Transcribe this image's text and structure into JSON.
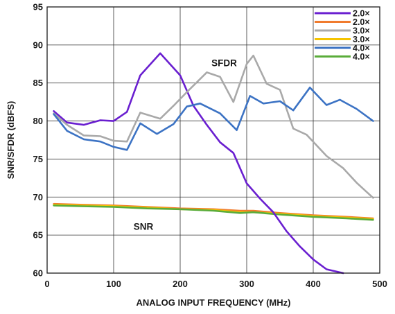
{
  "chart_data": {
    "type": "line",
    "xlabel": "ANALOG INPUT FREQUENCY (MHz)",
    "ylabel": "SNR/SFDR (dBFS)",
    "xlim": [
      0,
      500
    ],
    "ylim": [
      60,
      95
    ],
    "xticks": [
      0,
      100,
      200,
      300,
      400,
      500
    ],
    "yticks": [
      60,
      65,
      70,
      75,
      80,
      85,
      90,
      95
    ],
    "grid": true,
    "legend_position": "top-right",
    "annotations": [
      {
        "text": "SFDR",
        "x": 247,
        "y": 87.2
      },
      {
        "text": "SNR",
        "x": 130,
        "y": 65.7
      }
    ],
    "series": [
      {
        "name": "2.0×",
        "metric": "SFDR",
        "color": "#6a1fd0",
        "x": [
          10,
          30,
          55,
          80,
          100,
          120,
          140,
          170,
          200,
          220,
          240,
          260,
          280,
          300,
          320,
          340,
          360,
          380,
          400,
          420,
          445
        ],
        "y": [
          81.3,
          79.8,
          79.5,
          80.1,
          80.0,
          81.2,
          86.0,
          88.9,
          86.0,
          82.0,
          79.5,
          77.2,
          75.8,
          71.8,
          69.8,
          68.0,
          65.5,
          63.5,
          61.8,
          60.5,
          60.0
        ]
      },
      {
        "name": "2.0×",
        "metric": "SNR",
        "color": "#f07b2e",
        "x": [
          10,
          50,
          100,
          150,
          200,
          250,
          290,
          310,
          350,
          400,
          450,
          490
        ],
        "y": [
          69.1,
          69.0,
          68.9,
          68.7,
          68.5,
          68.4,
          68.2,
          68.2,
          67.9,
          67.6,
          67.4,
          67.2
        ]
      },
      {
        "name": "3.0×",
        "metric": "SFDR",
        "color": "#a9a9a9",
        "x": [
          10,
          30,
          55,
          80,
          100,
          120,
          140,
          170,
          190,
          210,
          240,
          260,
          280,
          300,
          310,
          330,
          350,
          370,
          390,
          420,
          445,
          465,
          490
        ],
        "y": [
          81.0,
          79.5,
          78.1,
          78.0,
          77.4,
          77.3,
          81.1,
          80.3,
          82.0,
          83.8,
          86.4,
          85.8,
          82.5,
          87.5,
          88.6,
          84.9,
          84.1,
          79.0,
          78.2,
          75.4,
          73.8,
          71.9,
          69.9
        ]
      },
      {
        "name": "3.0×",
        "metric": "SNR",
        "color": "#f5c400",
        "x": [
          10,
          50,
          100,
          150,
          200,
          250,
          290,
          310,
          350,
          400,
          450,
          490
        ],
        "y": [
          69.0,
          68.9,
          68.8,
          68.6,
          68.4,
          68.3,
          68.0,
          68.0,
          67.8,
          67.5,
          67.3,
          67.1
        ]
      },
      {
        "name": "4.0×",
        "metric": "SFDR",
        "color": "#3c73c4",
        "x": [
          10,
          30,
          55,
          80,
          100,
          120,
          140,
          165,
          190,
          210,
          230,
          260,
          285,
          305,
          325,
          350,
          370,
          395,
          420,
          440,
          465,
          490
        ],
        "y": [
          80.9,
          78.7,
          77.6,
          77.3,
          76.6,
          76.2,
          79.7,
          78.3,
          79.6,
          81.9,
          82.3,
          81.0,
          78.8,
          83.3,
          82.3,
          82.6,
          81.4,
          84.4,
          82.1,
          82.8,
          81.6,
          80.0
        ]
      },
      {
        "name": "4.0×",
        "metric": "SNR",
        "color": "#5aac3a",
        "x": [
          10,
          50,
          100,
          150,
          200,
          250,
          290,
          310,
          350,
          400,
          450,
          490
        ],
        "y": [
          68.9,
          68.8,
          68.7,
          68.5,
          68.4,
          68.2,
          67.9,
          68.0,
          67.7,
          67.4,
          67.2,
          67.0
        ]
      }
    ]
  }
}
